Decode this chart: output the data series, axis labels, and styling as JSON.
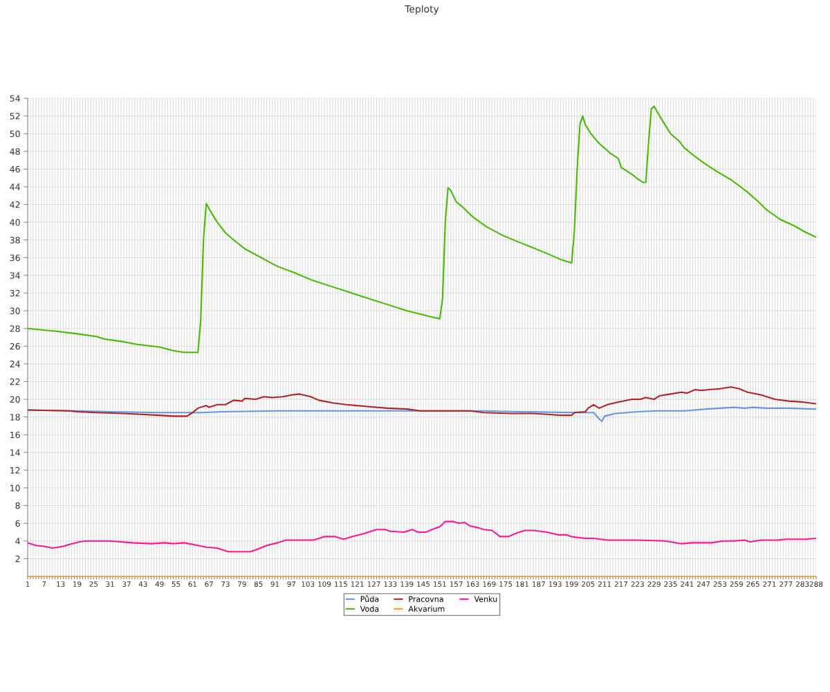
{
  "chart_data": {
    "type": "line",
    "title": "Teploty",
    "xlim": [
      1,
      288
    ],
    "ylim": [
      0,
      54
    ],
    "xticks": [
      1,
      {
        "value": 2,
        "label": null
      },
      {
        "value": 3,
        "label": null
      },
      {
        "value": 4,
        "label": null
      },
      {
        "value": 5,
        "label": null
      },
      {
        "value": 6,
        "label": null
      },
      7,
      {
        "value": 8,
        "label": null
      },
      {
        "value": 9,
        "label": null
      },
      {
        "value": 10,
        "label": null
      },
      {
        "value": 11,
        "label": null
      },
      {
        "value": 12,
        "label": null
      },
      13,
      {
        "value": 14,
        "label": null
      },
      {
        "value": 15,
        "label": null
      },
      {
        "value": 16,
        "label": null
      },
      {
        "value": 17,
        "label": null
      },
      {
        "value": 18,
        "label": null
      },
      19,
      {
        "value": 20,
        "label": null
      },
      {
        "value": 21,
        "label": null
      },
      {
        "value": 22,
        "label": null
      },
      {
        "value": 23,
        "label": null
      },
      {
        "value": 24,
        "label": null
      },
      25,
      {
        "value": 26,
        "label": null
      },
      {
        "value": 27,
        "label": null
      },
      {
        "value": 28,
        "label": null
      },
      {
        "value": 29,
        "label": null
      },
      {
        "value": 30,
        "label": null
      },
      31,
      {
        "value": 32,
        "label": null
      },
      {
        "value": 33,
        "label": null
      },
      {
        "value": 34,
        "label": null
      },
      {
        "value": 35,
        "label": null
      },
      {
        "value": 36,
        "label": null
      },
      37,
      {
        "value": 38,
        "label": null
      },
      {
        "value": 39,
        "label": null
      },
      {
        "value": 40,
        "label": null
      },
      {
        "value": 41,
        "label": null
      },
      {
        "value": 42,
        "label": null
      },
      43,
      {
        "value": 44,
        "label": null
      },
      {
        "value": 45,
        "label": null
      },
      {
        "value": 46,
        "label": null
      },
      {
        "value": 47,
        "label": null
      },
      {
        "value": 48,
        "label": null
      },
      49,
      {
        "value": 50,
        "label": null
      },
      {
        "value": 51,
        "label": null
      },
      {
        "value": 52,
        "label": null
      },
      {
        "value": 53,
        "label": null
      },
      {
        "value": 54,
        "label": null
      },
      55,
      {
        "value": 56,
        "label": null
      },
      {
        "value": 57,
        "label": null
      },
      {
        "value": 58,
        "label": null
      },
      {
        "value": 59,
        "label": null
      },
      {
        "value": 60,
        "label": null
      },
      61,
      {
        "value": 62,
        "label": null
      },
      {
        "value": 63,
        "label": null
      },
      {
        "value": 64,
        "label": null
      },
      {
        "value": 65,
        "label": null
      },
      {
        "value": 66,
        "label": null
      },
      67,
      {
        "value": 68,
        "label": null
      },
      {
        "value": 69,
        "label": null
      },
      {
        "value": 70,
        "label": null
      },
      {
        "value": 71,
        "label": null
      },
      {
        "value": 72,
        "label": null
      },
      73,
      {
        "value": 74,
        "label": null
      },
      {
        "value": 75,
        "label": null
      },
      {
        "value": 76,
        "label": null
      },
      {
        "value": 77,
        "label": null
      },
      {
        "value": 78,
        "label": null
      },
      79,
      {
        "value": 80,
        "label": null
      },
      {
        "value": 81,
        "label": null
      },
      {
        "value": 82,
        "label": null
      },
      {
        "value": 83,
        "label": null
      },
      {
        "value": 84,
        "label": null
      },
      85,
      {
        "value": 86,
        "label": null
      },
      {
        "value": 87,
        "label": null
      },
      {
        "value": 88,
        "label": null
      },
      {
        "value": 89,
        "label": null
      },
      {
        "value": 90,
        "label": null
      },
      91,
      {
        "value": 92,
        "label": null
      },
      {
        "value": 93,
        "label": null
      },
      {
        "value": 94,
        "label": null
      },
      {
        "value": 95,
        "label": null
      },
      {
        "value": 96,
        "label": null
      },
      97,
      {
        "value": 98,
        "label": null
      },
      {
        "value": 99,
        "label": null
      },
      {
        "value": 100,
        "label": null
      },
      {
        "value": 101,
        "label": null
      },
      {
        "value": 102,
        "label": null
      },
      103,
      {
        "value": 104,
        "label": null
      },
      {
        "value": 105,
        "label": null
      },
      {
        "value": 106,
        "label": null
      },
      {
        "value": 107,
        "label": null
      },
      {
        "value": 108,
        "label": null
      },
      109,
      {
        "value": 110,
        "label": null
      },
      {
        "value": 111,
        "label": null
      },
      {
        "value": 112,
        "label": null
      },
      {
        "value": 113,
        "label": null
      },
      {
        "value": 114,
        "label": null
      },
      115,
      {
        "value": 116,
        "label": null
      },
      {
        "value": 117,
        "label": null
      },
      {
        "value": 118,
        "label": null
      },
      {
        "value": 119,
        "label": null
      },
      {
        "value": 120,
        "label": null
      },
      121,
      {
        "value": 122,
        "label": null
      },
      {
        "value": 123,
        "label": null
      },
      {
        "value": 124,
        "label": null
      },
      {
        "value": 125,
        "label": null
      },
      {
        "value": 126,
        "label": null
      },
      127,
      {
        "value": 128,
        "label": null
      },
      {
        "value": 129,
        "label": null
      },
      {
        "value": 130,
        "label": null
      },
      {
        "value": 131,
        "label": null
      },
      {
        "value": 132,
        "label": null
      },
      133,
      {
        "value": 134,
        "label": null
      },
      {
        "value": 135,
        "label": null
      },
      {
        "value": 136,
        "label": null
      },
      {
        "value": 137,
        "label": null
      },
      {
        "value": 138,
        "label": null
      },
      139,
      {
        "value": 140,
        "label": null
      },
      {
        "value": 141,
        "label": null
      },
      {
        "value": 142,
        "label": null
      },
      {
        "value": 143,
        "label": null
      },
      {
        "value": 144,
        "label": null
      },
      145,
      {
        "value": 146,
        "label": null
      },
      {
        "value": 147,
        "label": null
      },
      {
        "value": 148,
        "label": null
      },
      {
        "value": 149,
        "label": null
      },
      {
        "value": 150,
        "label": null
      },
      151,
      {
        "value": 152,
        "label": null
      },
      {
        "value": 153,
        "label": null
      },
      {
        "value": 154,
        "label": null
      },
      {
        "value": 155,
        "label": null
      },
      {
        "value": 156,
        "label": null
      },
      157,
      {
        "value": 158,
        "label": null
      },
      {
        "value": 159,
        "label": null
      },
      {
        "value": 160,
        "label": null
      },
      {
        "value": 161,
        "label": null
      },
      {
        "value": 162,
        "label": null
      },
      163,
      {
        "value": 164,
        "label": null
      },
      {
        "value": 165,
        "label": null
      },
      {
        "value": 166,
        "label": null
      },
      {
        "value": 167,
        "label": null
      },
      {
        "value": 168,
        "label": null
      },
      169,
      {
        "value": 170,
        "label": null
      },
      {
        "value": 171,
        "label": null
      },
      {
        "value": 172,
        "label": null
      },
      {
        "value": 173,
        "label": null
      },
      {
        "value": 174,
        "label": null
      },
      175,
      {
        "value": 176,
        "label": null
      },
      {
        "value": 177,
        "label": null
      },
      {
        "value": 178,
        "label": null
      },
      {
        "value": 179,
        "label": null
      },
      {
        "value": 180,
        "label": null
      },
      181,
      {
        "value": 182,
        "label": null
      },
      {
        "value": 183,
        "label": null
      },
      {
        "value": 184,
        "label": null
      },
      {
        "value": 185,
        "label": null
      },
      {
        "value": 186,
        "label": null
      },
      187,
      {
        "value": 188,
        "label": null
      },
      {
        "value": 189,
        "label": null
      },
      {
        "value": 190,
        "label": null
      },
      {
        "value": 191,
        "label": null
      },
      {
        "value": 192,
        "label": null
      },
      193,
      {
        "value": 194,
        "label": null
      },
      {
        "value": 195,
        "label": null
      },
      {
        "value": 196,
        "label": null
      },
      {
        "value": 197,
        "label": null
      },
      {
        "value": 198,
        "label": null
      },
      199,
      {
        "value": 200,
        "label": null
      },
      {
        "value": 201,
        "label": null
      },
      {
        "value": 202,
        "label": null
      },
      {
        "value": 203,
        "label": null
      },
      {
        "value": 204,
        "label": null
      },
      205,
      {
        "value": 206,
        "label": null
      },
      {
        "value": 207,
        "label": null
      },
      {
        "value": 208,
        "label": null
      },
      {
        "value": 209,
        "label": null
      },
      {
        "value": 210,
        "label": null
      },
      211,
      {
        "value": 212,
        "label": null
      },
      {
        "value": 213,
        "label": null
      },
      {
        "value": 214,
        "label": null
      },
      {
        "value": 215,
        "label": null
      },
      {
        "value": 216,
        "label": null
      },
      217,
      {
        "value": 218,
        "label": null
      },
      {
        "value": 219,
        "label": null
      },
      {
        "value": 220,
        "label": null
      },
      {
        "value": 221,
        "label": null
      },
      {
        "value": 222,
        "label": null
      },
      223,
      {
        "value": 224,
        "label": null
      },
      {
        "value": 225,
        "label": null
      },
      {
        "value": 226,
        "label": null
      },
      {
        "value": 227,
        "label": null
      },
      {
        "value": 228,
        "label": null
      },
      229,
      {
        "value": 230,
        "label": null
      },
      {
        "value": 231,
        "label": null
      },
      {
        "value": 232,
        "label": null
      },
      {
        "value": 233,
        "label": null
      },
      {
        "value": 234,
        "label": null
      },
      235,
      {
        "value": 236,
        "label": null
      },
      {
        "value": 237,
        "label": null
      },
      {
        "value": 238,
        "label": null
      },
      {
        "value": 239,
        "label": null
      },
      {
        "value": 240,
        "label": null
      },
      241,
      {
        "value": 242,
        "label": null
      },
      {
        "value": 243,
        "label": null
      },
      {
        "value": 244,
        "label": null
      },
      {
        "value": 245,
        "label": null
      },
      {
        "value": 246,
        "label": null
      },
      247,
      {
        "value": 248,
        "label": null
      },
      {
        "value": 249,
        "label": null
      },
      {
        "value": 250,
        "label": null
      },
      {
        "value": 251,
        "label": null
      },
      {
        "value": 252,
        "label": null
      },
      253,
      {
        "value": 254,
        "label": null
      },
      {
        "value": 255,
        "label": null
      },
      {
        "value": 256,
        "label": null
      },
      {
        "value": 257,
        "label": null
      },
      {
        "value": 258,
        "label": null
      },
      259,
      {
        "value": 260,
        "label": null
      },
      {
        "value": 261,
        "label": null
      },
      {
        "value": 262,
        "label": null
      },
      {
        "value": 263,
        "label": null
      },
      {
        "value": 264,
        "label": null
      },
      265,
      {
        "value": 266,
        "label": null
      },
      {
        "value": 267,
        "label": null
      },
      {
        "value": 268,
        "label": null
      },
      {
        "value": 269,
        "label": null
      },
      {
        "value": 270,
        "label": null
      },
      271,
      {
        "value": 272,
        "label": null
      },
      {
        "value": 273,
        "label": null
      },
      {
        "value": 274,
        "label": null
      },
      {
        "value": 275,
        "label": null
      },
      {
        "value": 276,
        "label": null
      },
      277,
      {
        "value": 278,
        "label": null
      },
      {
        "value": 279,
        "label": null
      },
      {
        "value": 280,
        "label": null
      },
      {
        "value": 281,
        "label": null
      },
      {
        "value": 282,
        "label": null
      },
      283,
      {
        "value": 284,
        "label": null
      },
      {
        "value": 285,
        "label": null
      },
      {
        "value": 286,
        "label": null
      },
      {
        "value": 287,
        "label": null
      },
      288
    ],
    "yticks": [
      2,
      4,
      6,
      8,
      10,
      12,
      14,
      16,
      18,
      20,
      22,
      24,
      26,
      28,
      30,
      32,
      34,
      36,
      38,
      40,
      42,
      44,
      46,
      48,
      50,
      52,
      54
    ],
    "grid": true,
    "legend": "bottom",
    "marker": "none",
    "line_style": "solid",
    "series": [
      {
        "name": "Půda",
        "color": "#6495ed",
        "x": [
          1,
          19,
          31,
          49,
          64,
          72,
          92,
          142,
          167,
          180,
          200,
          207,
          209,
          210,
          211,
          215,
          223,
          230,
          240,
          248,
          258,
          262,
          265,
          270,
          278,
          287,
          288
        ],
        "values": [
          18.8,
          18.7,
          18.6,
          18.5,
          18.5,
          18.6,
          18.7,
          18.7,
          18.7,
          18.6,
          18.5,
          18.5,
          17.8,
          17.5,
          18.1,
          18.4,
          18.6,
          18.7,
          18.7,
          18.9,
          19.1,
          19.0,
          19.1,
          19.0,
          19.0,
          18.9,
          18.9
        ]
      },
      {
        "name": "Voda",
        "color": "#44bb00",
        "x": [
          1,
          11,
          19,
          26,
          29,
          36,
          41,
          49,
          54,
          58,
          63,
          64,
          65,
          66,
          68,
          70,
          73,
          76,
          80,
          86,
          92,
          98,
          105,
          114,
          123,
          131,
          139,
          148,
          151,
          152,
          153,
          154,
          155,
          157,
          159,
          161,
          163,
          168,
          174,
          181,
          189,
          195,
          199,
          200,
          201,
          202,
          203,
          204,
          206,
          209,
          213,
          216,
          217,
          221,
          223,
          225,
          226,
          227,
          228,
          229,
          231,
          233,
          235,
          238,
          240,
          244,
          248,
          252,
          257,
          260,
          263,
          267,
          270,
          275,
          280,
          284,
          288
        ],
        "values": [
          28.0,
          27.7,
          27.4,
          27.1,
          26.8,
          26.5,
          26.2,
          25.9,
          25.5,
          25.3,
          25.3,
          29,
          38,
          42.1,
          41,
          40,
          38.8,
          38,
          37,
          36,
          35,
          34.3,
          33.4,
          32.5,
          31.6,
          30.8,
          30,
          29.3,
          29.1,
          31.3,
          40,
          43.9,
          43.6,
          42.3,
          41.8,
          41.2,
          40.6,
          39.5,
          38.5,
          37.6,
          36.6,
          35.8,
          35.4,
          39,
          46,
          51,
          52,
          51,
          50,
          48.9,
          47.8,
          47.2,
          46.2,
          45.4,
          44.9,
          44.5,
          44.5,
          49,
          52.8,
          53.1,
          52,
          51,
          50,
          49.2,
          48.4,
          47.4,
          46.5,
          45.7,
          44.8,
          44.1,
          43.4,
          42.3,
          41.4,
          40.3,
          39.6,
          38.9,
          38.3
        ]
      },
      {
        "name": "Pracovna",
        "color": "#b22222",
        "x": [
          1,
          16,
          19,
          26,
          36,
          49,
          54,
          59,
          61,
          63,
          66,
          67,
          70,
          73,
          76,
          79,
          80,
          84,
          87,
          90,
          94,
          97,
          100,
          104,
          107,
          112,
          117,
          124,
          132,
          139,
          144,
          152,
          162,
          167,
          177,
          185,
          190,
          195,
          199,
          200,
          204,
          205,
          207,
          209,
          212,
          216,
          221,
          224,
          226,
          229,
          231,
          235,
          239,
          241,
          244,
          246,
          249,
          253,
          257,
          260,
          263,
          268,
          273,
          278,
          283,
          288
        ],
        "values": [
          18.8,
          18.7,
          18.6,
          18.5,
          18.4,
          18.2,
          18.1,
          18.1,
          18.5,
          19,
          19.3,
          19.1,
          19.4,
          19.4,
          19.9,
          19.8,
          20.1,
          20.0,
          20.3,
          20.2,
          20.3,
          20.5,
          20.6,
          20.3,
          19.9,
          19.6,
          19.4,
          19.2,
          19.0,
          18.9,
          18.7,
          18.7,
          18.7,
          18.5,
          18.4,
          18.4,
          18.3,
          18.2,
          18.2,
          18.5,
          18.6,
          19.0,
          19.4,
          19.0,
          19.4,
          19.7,
          20.0,
          20.0,
          20.2,
          20.0,
          20.4,
          20.6,
          20.8,
          20.7,
          21.1,
          21.0,
          21.1,
          21.2,
          21.4,
          21.2,
          20.8,
          20.5,
          20.0,
          19.8,
          19.7,
          19.5
        ]
      },
      {
        "name": "Akvarium",
        "color": "#ffa500",
        "x": [
          1,
          288
        ],
        "values": [
          0,
          0
        ]
      },
      {
        "name": "Venku",
        "color": "#ff1493",
        "x": [
          1,
          4,
          7,
          10,
          14,
          16,
          20,
          22,
          31,
          39,
          46,
          51,
          54,
          58,
          63,
          66,
          70,
          74,
          82,
          85,
          88,
          92,
          95,
          102,
          105,
          109,
          113,
          116,
          119,
          123,
          125,
          128,
          131,
          133,
          138,
          141,
          143,
          146,
          149,
          151,
          153,
          156,
          158,
          160,
          162,
          165,
          167,
          170,
          173,
          176,
          179,
          182,
          185,
          190,
          194,
          197,
          199,
          204,
          207,
          212,
          223,
          233,
          239,
          243,
          250,
          254,
          258,
          262,
          264,
          268,
          274,
          277,
          284,
          288
        ],
        "values": [
          3.8,
          3.5,
          3.4,
          3.2,
          3.4,
          3.6,
          3.9,
          4.0,
          4.0,
          3.8,
          3.7,
          3.8,
          3.7,
          3.8,
          3.5,
          3.3,
          3.2,
          2.8,
          2.8,
          3.1,
          3.5,
          3.8,
          4.1,
          4.1,
          4.1,
          4.5,
          4.5,
          4.2,
          4.5,
          4.8,
          5.0,
          5.3,
          5.3,
          5.1,
          5.0,
          5.3,
          5.0,
          5.0,
          5.4,
          5.6,
          6.2,
          6.2,
          6.0,
          6.1,
          5.7,
          5.5,
          5.3,
          5.2,
          4.5,
          4.5,
          4.9,
          5.2,
          5.2,
          5.0,
          4.7,
          4.7,
          4.5,
          4.3,
          4.3,
          4.1,
          4.1,
          4.0,
          3.7,
          3.8,
          3.8,
          4.0,
          4.0,
          4.1,
          3.9,
          4.1,
          4.1,
          4.2,
          4.2,
          4.3
        ]
      }
    ]
  }
}
